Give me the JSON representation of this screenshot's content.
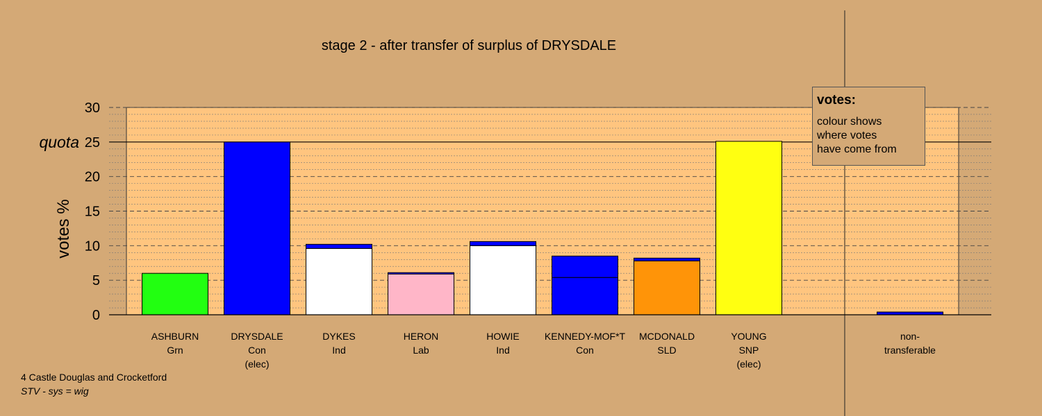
{
  "chart_data": {
    "type": "bar",
    "title": "stage 2 - after transfer of surplus of DRYSDALE",
    "ylabel": "votes %",
    "ylim": [
      0,
      30
    ],
    "yticks": [
      0,
      5,
      10,
      15,
      20,
      25,
      30
    ],
    "quota": {
      "label": "quota",
      "value": 25
    },
    "grid": "dotted minor every 1, dashed major every 5",
    "candidates": [
      {
        "name": "ASHBURN",
        "party": "Grn",
        "note": "",
        "segments": [
          {
            "value": 6.0,
            "color": "#22FF11"
          }
        ]
      },
      {
        "name": "DRYSDALE",
        "party": "Con",
        "note": "(elec)",
        "segments": [
          {
            "value": 25.0,
            "color": "#0000FF"
          }
        ]
      },
      {
        "name": "DYKES",
        "party": "Ind",
        "note": "",
        "segments": [
          {
            "value": 9.6,
            "color": "#FFFFFF"
          },
          {
            "value": 0.6,
            "color": "#0000FF"
          }
        ]
      },
      {
        "name": "HERON",
        "party": "Lab",
        "note": "",
        "segments": [
          {
            "value": 5.9,
            "color": "#FFB6C8"
          },
          {
            "value": 0.2,
            "color": "#0000FF"
          }
        ]
      },
      {
        "name": "HOWIE",
        "party": "Ind",
        "note": "",
        "segments": [
          {
            "value": 10.0,
            "color": "#FFFFFF"
          },
          {
            "value": 0.6,
            "color": "#0000FF"
          }
        ]
      },
      {
        "name": "KENNEDY-MOF*T",
        "party": "Con",
        "note": "",
        "segments": [
          {
            "value": 5.4,
            "color": "#0000FF"
          },
          {
            "value": 3.1,
            "color": "#0000FF"
          }
        ]
      },
      {
        "name": "MCDONALD",
        "party": "SLD",
        "note": "",
        "segments": [
          {
            "value": 7.8,
            "color": "#FF9408"
          },
          {
            "value": 0.4,
            "color": "#0000FF"
          }
        ]
      },
      {
        "name": "YOUNG",
        "party": "SNP",
        "note": "(elec)",
        "segments": [
          {
            "value": 25.1,
            "color": "#FFFF11"
          }
        ]
      }
    ],
    "non_transferable": {
      "label_line1": "non-",
      "label_line2": "transferable",
      "value": 0.4,
      "color": "#0000FF"
    },
    "legend": {
      "position": "top-right",
      "title": "votes:",
      "lines": [
        "colour shows",
        "where votes",
        "have come from"
      ]
    }
  },
  "footer": {
    "line1": "4 Castle Douglas and Crocketford",
    "line2": "STV - sys = wig"
  }
}
